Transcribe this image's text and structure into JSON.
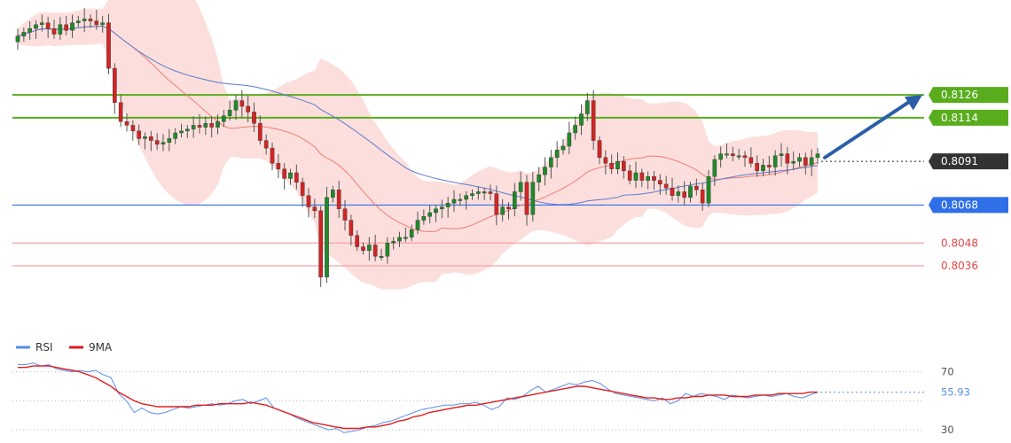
{
  "chart_data": [
    {
      "type": "candlestick",
      "title": "",
      "overlays": [
        "bollinger-bands",
        "moving-average-fast",
        "moving-average-slow"
      ],
      "levels": [
        {
          "value": 0.8126,
          "label": "0.8126",
          "kind": "resistance",
          "color": "#59ad1d"
        },
        {
          "value": 0.8114,
          "label": "0.8114",
          "kind": "resistance",
          "color": "#59ad1d"
        },
        {
          "value": 0.8091,
          "label": "0.8091",
          "kind": "current",
          "color": "#333333"
        },
        {
          "value": 0.8068,
          "label": "0.8068",
          "kind": "pivot",
          "color": "#2f6fe8"
        },
        {
          "value": 0.8048,
          "label": "0.8048",
          "kind": "support",
          "color": "#f05050"
        },
        {
          "value": 0.8036,
          "label": "0.8036",
          "kind": "support",
          "color": "#f05050"
        }
      ],
      "projection": {
        "from": 0.8093,
        "to": 0.8126,
        "color": "#2b5fa8"
      },
      "ylim": [
        0.8001,
        0.8176
      ],
      "candle_colors": {
        "up": "#1f8a2a",
        "down": "#d32424"
      },
      "closes": [
        0.8157,
        0.8159,
        0.8161,
        0.8163,
        0.8164,
        0.8161,
        0.8158,
        0.8163,
        0.816,
        0.8164,
        0.8165,
        0.8166,
        0.8165,
        0.8163,
        0.8164,
        0.814,
        0.8122,
        0.8112,
        0.811,
        0.8107,
        0.8103,
        0.8104,
        0.8102,
        0.81,
        0.8101,
        0.8103,
        0.8106,
        0.8107,
        0.8108,
        0.811,
        0.8109,
        0.8111,
        0.8109,
        0.8112,
        0.8115,
        0.8118,
        0.8123,
        0.812,
        0.8117,
        0.8111,
        0.8102,
        0.8098,
        0.809,
        0.8087,
        0.8082,
        0.8085,
        0.808,
        0.8073,
        0.8067,
        0.8065,
        0.803,
        0.8072,
        0.8076,
        0.8066,
        0.806,
        0.8052,
        0.8046,
        0.8044,
        0.8047,
        0.8041,
        0.8041,
        0.8048,
        0.8049,
        0.8051,
        0.8051,
        0.8055,
        0.806,
        0.8062,
        0.8064,
        0.8066,
        0.8067,
        0.8069,
        0.8071,
        0.8071,
        0.8073,
        0.8074,
        0.8075,
        0.8075,
        0.8074,
        0.8063,
        0.8067,
        0.8066,
        0.8075,
        0.808,
        0.8063,
        0.808,
        0.8084,
        0.8088,
        0.8093,
        0.8097,
        0.8099,
        0.8106,
        0.811,
        0.8116,
        0.8123,
        0.8102,
        0.8093,
        0.809,
        0.8087,
        0.8091,
        0.8086,
        0.8081,
        0.8085,
        0.8081,
        0.8083,
        0.8081,
        0.8079,
        0.8077,
        0.8073,
        0.8075,
        0.8072,
        0.8078,
        0.8076,
        0.8069,
        0.8083,
        0.8092,
        0.8095,
        0.8095,
        0.8094,
        0.8094,
        0.8093,
        0.809,
        0.8086,
        0.8089,
        0.8088,
        0.8094,
        0.8095,
        0.809,
        0.8091,
        0.8093,
        0.8089,
        0.8093,
        0.8095
      ]
    },
    {
      "type": "line",
      "title": "",
      "series": [
        {
          "name": "RSI",
          "color": "#5a8dea",
          "values": [
            75,
            75,
            76,
            74,
            75,
            72,
            71,
            70,
            71,
            70,
            71,
            68,
            66,
            55,
            50,
            42,
            45,
            42,
            41,
            42,
            44,
            46,
            45,
            46,
            47,
            48,
            47,
            48,
            50,
            51,
            48,
            50,
            52,
            45,
            43,
            41,
            38,
            36,
            34,
            32,
            30,
            31,
            28,
            29,
            30,
            32,
            33,
            35,
            36,
            38,
            40,
            42,
            44,
            45,
            46,
            47,
            47,
            48,
            48,
            49,
            47,
            44,
            46,
            52,
            51,
            53,
            57,
            60,
            56,
            58,
            60,
            62,
            61,
            63,
            64,
            62,
            58,
            55,
            54,
            53,
            52,
            51,
            50,
            52,
            48,
            50,
            55,
            53,
            55,
            54,
            53,
            51,
            54,
            53,
            52,
            53,
            54,
            53,
            54,
            55,
            53,
            52,
            54,
            56
          ]
        },
        {
          "name": "9MA",
          "color": "#e01d1d",
          "values": [
            73,
            73,
            74,
            74,
            74,
            73,
            72,
            71,
            70,
            68,
            66,
            63,
            60,
            56,
            53,
            50,
            48,
            47,
            46,
            46,
            46,
            46,
            46,
            47,
            47,
            47,
            48,
            48,
            48,
            48,
            49,
            48,
            47,
            45,
            43,
            41,
            39,
            37,
            35,
            34,
            33,
            32,
            31,
            31,
            31,
            32,
            32,
            33,
            34,
            36,
            37,
            39,
            40,
            42,
            43,
            44,
            45,
            46,
            47,
            47,
            48,
            49,
            50,
            51,
            52,
            53,
            54,
            55,
            56,
            57,
            58,
            59,
            60,
            60,
            59,
            58,
            57,
            56,
            55,
            54,
            53,
            52,
            52,
            51,
            51,
            52,
            52,
            53,
            53,
            54,
            54,
            54,
            53,
            53,
            53,
            54,
            54,
            54,
            55,
            55,
            55,
            55,
            56,
            56
          ]
        }
      ],
      "yticks": [
        "70",
        "30"
      ],
      "ylim": [
        24,
        82
      ],
      "last_value": "55.93",
      "legend": {
        "placement": "top-left",
        "items": [
          {
            "label": "RSI",
            "color": "#5a8dea"
          },
          {
            "label": "9MA",
            "color": "#e01d1d"
          }
        ]
      }
    }
  ]
}
